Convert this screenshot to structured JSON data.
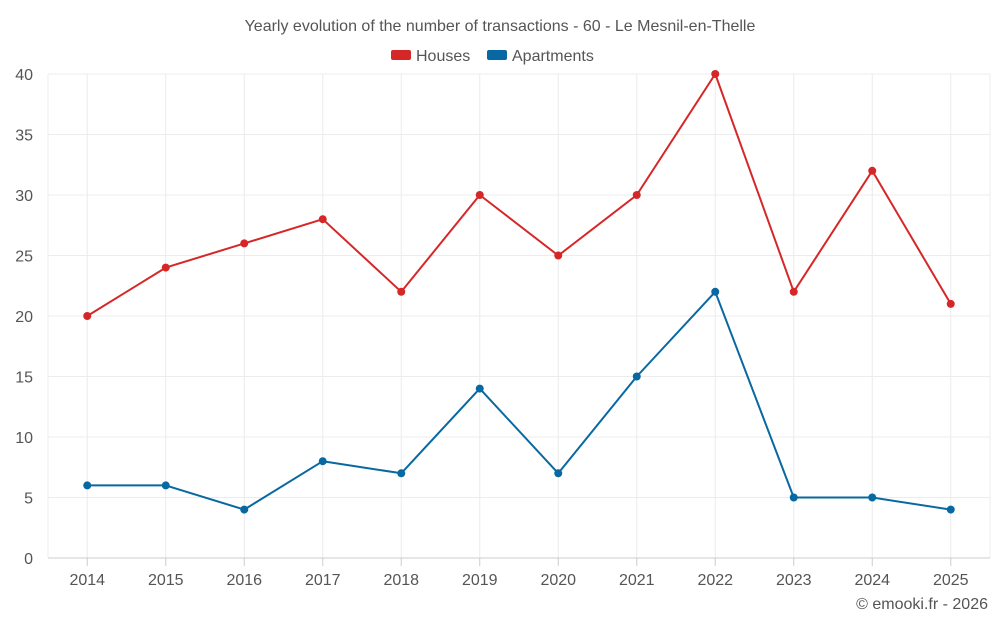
{
  "chart_data": {
    "type": "line",
    "title": "Yearly evolution of the number of transactions - 60 - Le Mesnil-en-Thelle",
    "categories": [
      "2014",
      "2015",
      "2016",
      "2017",
      "2018",
      "2019",
      "2020",
      "2021",
      "2022",
      "2023",
      "2024",
      "2025"
    ],
    "series": [
      {
        "name": "Houses",
        "color": "#d62728",
        "values": [
          20,
          24,
          26,
          28,
          22,
          30,
          25,
          30,
          40,
          22,
          32,
          21
        ]
      },
      {
        "name": "Apartments",
        "color": "#0868a1",
        "values": [
          6,
          6,
          4,
          8,
          7,
          14,
          7,
          15,
          22,
          5,
          5,
          4
        ]
      }
    ],
    "ylim": [
      0,
      40
    ],
    "yticks": [
      0,
      5,
      10,
      15,
      20,
      25,
      30,
      35,
      40
    ],
    "grid": true,
    "legend_position": "top-center",
    "xlabel": "",
    "ylabel": ""
  },
  "credit": "© emooki.fr - 2026"
}
